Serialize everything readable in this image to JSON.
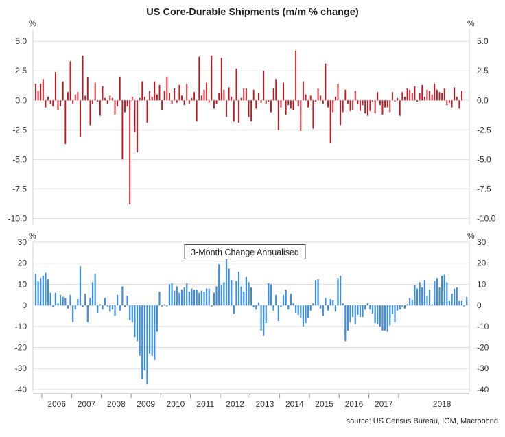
{
  "title": "US Core-Durable Shipments (m/m % change)",
  "source": "source: US Census Bureau, IGM, Macrobond",
  "colors": {
    "top_bars": "#d0121b",
    "bottom_bars": "#3c8ee6",
    "grid": "#dddddd",
    "axis": "#999999"
  },
  "chart_data": [
    {
      "type": "bar",
      "unit_label": "%",
      "ylim": [
        -10.5,
        6
      ],
      "yticks": [
        "5.0",
        "2.5",
        "0.0",
        "-2.5",
        "-5.0",
        "-7.5",
        "-10.0"
      ],
      "ytick_values": [
        5,
        2.5,
        0,
        -2.5,
        -5,
        -7.5,
        -10
      ],
      "x_start": "2005-10",
      "grid": true,
      "values": [
        1.4,
        0.8,
        1.4,
        1.8,
        -0.6,
        0.3,
        -0.3,
        -0.5,
        2.4,
        -0.8,
        -0.5,
        1.6,
        -3.7,
        0.7,
        3.3,
        -0.3,
        0.5,
        0.7,
        -3.1,
        3.8,
        0.4,
        2.0,
        -2.1,
        -0.3,
        1.5,
        -0.1,
        -1.3,
        1.2,
        0.2,
        -0.3,
        0.4,
        0.2,
        -1.2,
        -0.5,
        2.0,
        -5.0,
        -1.0,
        -0.5,
        -8.8,
        0.3,
        -2.7,
        -4.4,
        0.2,
        1.6,
        0.3,
        -1.9,
        0.8,
        0.3,
        1.6,
        0.5,
        1.3,
        -0.8,
        0.8,
        2.0,
        0.6,
        -0.3,
        1.0,
        -0.2,
        1.3,
        0.4,
        -0.4,
        1.4,
        -0.3,
        0.2,
        0.7,
        -1.8,
        3.7,
        0.4,
        0.9,
        1.5,
        -0.2,
        3.8,
        -0.7,
        -0.3,
        0.6,
        3.6,
        0.9,
        -1.4,
        1.1,
        0.3,
        -1.8,
        2.7,
        -1.9,
        0.2,
        1.0,
        1.0,
        -1.4,
        -1.8,
        0.9,
        -0.7,
        0.6,
        -0.2,
        2.5,
        -0.3,
        -0.1,
        -1.0,
        1.0,
        1.8,
        -2.5,
        -0.6,
        1.5,
        -1.2,
        -0.4,
        -0.7,
        -0.8,
        4.2,
        -0.5,
        -2.6,
        1.6,
        0.5,
        -0.6,
        0.4,
        -2.4,
        -0.1,
        1.0,
        0.4,
        -0.3,
        3.1,
        -0.6,
        -3.6,
        -1.0,
        0.3,
        1.4,
        -2.1,
        -1.0,
        0.9,
        -0.3,
        -0.9,
        -0.8,
        0.8,
        -0.3,
        -0.9,
        -0.4,
        -1.1,
        -1.3,
        -0.9,
        -0.1,
        -1.1,
        0.7,
        -0.4,
        -1.2,
        -0.6,
        -0.6,
        -1.0,
        0.7,
        -0.1,
        0.2,
        -1.3,
        0.7,
        0.3,
        1.0,
        0.9,
        0.6,
        1.2,
        -0.1,
        0.6,
        1.3,
        0.3,
        0.9,
        0.8,
        0.5,
        1.4,
        0.9,
        0.7,
        0.6,
        1.0,
        -0.4,
        -0.2,
        -0.6,
        1.1,
        0.3,
        -0.7,
        0.8
      ]
    },
    {
      "type": "bar",
      "unit_label": "%",
      "annotation": "3-Month Change Annualised",
      "ylim": [
        -41,
        30
      ],
      "yticks": [
        "30",
        "20",
        "10",
        "0",
        "-10",
        "-20",
        "-30",
        "-40"
      ],
      "ytick_values": [
        30,
        20,
        10,
        0,
        -10,
        -20,
        -30,
        -40
      ],
      "x_start": "2005-10",
      "grid": true,
      "values": [
        15.0,
        11.5,
        13.0,
        14.0,
        15.5,
        12.5,
        6.0,
        -1.0,
        6.0,
        1.0,
        5.0,
        4.0,
        3.5,
        -1.5,
        5.0,
        -8.0,
        -2.0,
        3.0,
        18.5,
        -1.0,
        5.5,
        -8.0,
        3.5,
        11.0,
        15.0,
        -3.5,
        0.5,
        -2.0,
        3.5,
        -0.5,
        -3.0,
        -2.0,
        -5.0,
        5.0,
        -2.5,
        9.0,
        -1.0,
        4.5,
        -7.0,
        -8.0,
        -15.0,
        -17.0,
        -24.0,
        -35.0,
        -31.0,
        -37.5,
        -23.0,
        -24.0,
        -26.0,
        -12.5,
        6.5,
        -0.5,
        0.5,
        -0.5,
        10.0,
        10.5,
        7.0,
        9.0,
        6.0,
        7.5,
        8.5,
        10.5,
        6.5,
        8.0,
        7.5,
        7.5,
        6.0,
        7.0,
        6.5,
        8.0,
        8.0,
        -0.5,
        6.0,
        9.0,
        19.5,
        9.5,
        11.0,
        25.5,
        17.5,
        12.0,
        -4.0,
        11.5,
        16.0,
        9.0,
        6.5,
        13.5,
        11.0,
        8.5,
        -1.0,
        -2.0,
        1.5,
        -12.0,
        -14.5,
        -8.5,
        10.5,
        10.0,
        -2.5,
        5.0,
        -7.5,
        -1.0,
        5.0,
        7.5,
        -2.0,
        5.5,
        1.0,
        -3.5,
        -4.5,
        -6.0,
        -10.0,
        -8.5,
        -6.0,
        -2.5,
        1.0,
        12.0,
        12.5,
        -1.5,
        -5.0,
        3.5,
        -2.5,
        3.0,
        2.5,
        -3.0,
        13.0,
        14.0,
        1.0,
        -17.0,
        -12.0,
        -8.0,
        -5.5,
        -9.0,
        -4.5,
        -5.5,
        -5.5,
        -2.0,
        1.0,
        -2.0,
        -4.0,
        -8.5,
        -9.0,
        -10.0,
        -12.0,
        -12.0,
        -12.5,
        -9.5,
        -4.0,
        -8.0,
        -2.5,
        -2.0,
        -0.5,
        -1.5,
        0.5,
        3.5,
        2.5,
        9.5,
        8.0,
        11.0,
        8.5,
        12.0,
        4.5,
        7.5,
        0.5,
        11.5,
        13.0,
        8.5,
        14.0,
        14.5,
        11.0,
        2.0,
        5.5,
        8.0,
        8.5,
        2.0,
        2.0,
        -0.5,
        4.0
      ]
    }
  ],
  "x_axis": {
    "year_labels": [
      "2006",
      "2007",
      "2008",
      "2009",
      "2010",
      "2011",
      "2012",
      "2013",
      "2014",
      "2015",
      "2016",
      "2017",
      "2018"
    ],
    "year_start_index": [
      3,
      15,
      27,
      39,
      51,
      63,
      75,
      87,
      99,
      111,
      123,
      135,
      147
    ]
  }
}
